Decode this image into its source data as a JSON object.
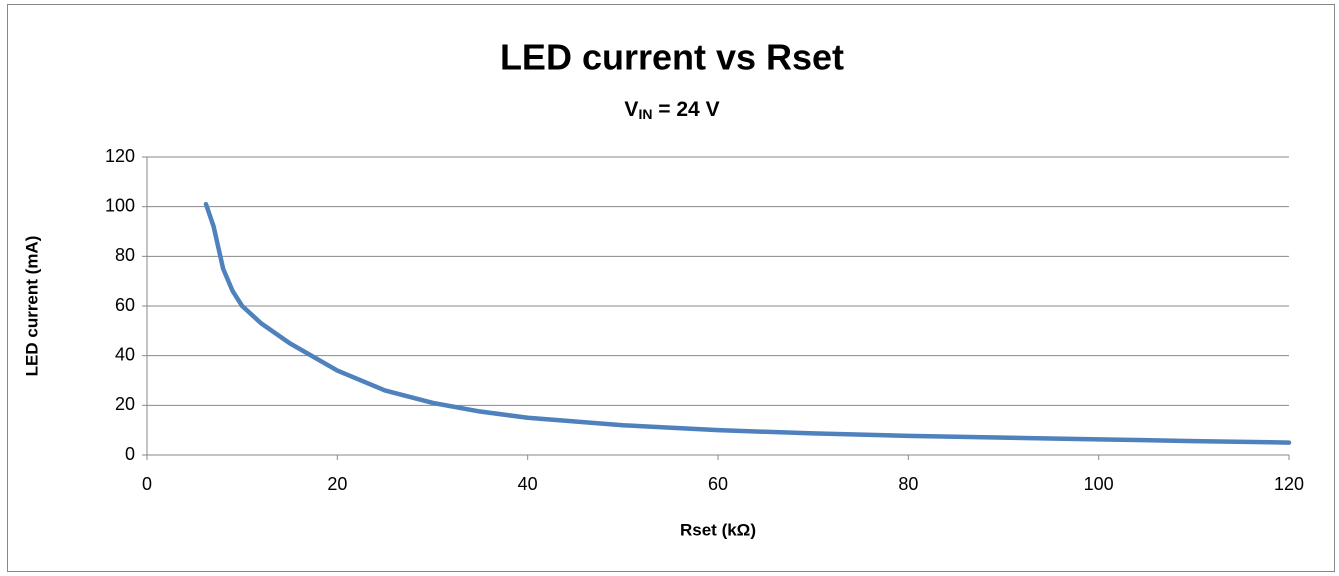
{
  "chart_data": {
    "type": "line",
    "title": "LED current vs Rset",
    "subtitle": [
      "V",
      "IN",
      " = 24 V"
    ],
    "xlabel": "Rset (kΩ)",
    "ylabel": "LED current (mA)",
    "x": [
      6.2,
      7,
      8,
      9,
      10,
      12,
      15,
      20,
      25,
      30,
      35,
      40,
      50,
      60,
      70,
      80,
      90,
      100,
      110,
      120
    ],
    "values": [
      101,
      92,
      75,
      66,
      60,
      53,
      45,
      34,
      26,
      21,
      17.5,
      15,
      12,
      10,
      8.7,
      7.7,
      7,
      6.3,
      5.6,
      5
    ],
    "color": "#4f81bd",
    "xlim": [
      0,
      120
    ],
    "xticks": [
      0,
      20,
      40,
      60,
      80,
      100,
      120
    ],
    "ylim": [
      0,
      120
    ],
    "yticks": [
      0,
      20,
      40,
      60,
      80,
      100,
      120
    ],
    "grid": true
  }
}
